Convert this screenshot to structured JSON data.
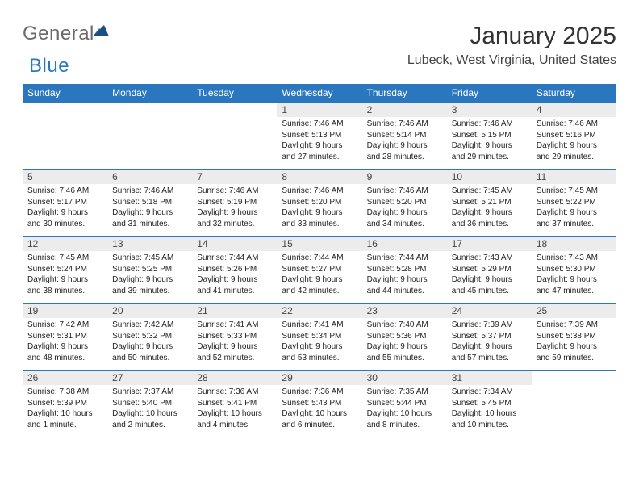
{
  "brand": {
    "part1": "General",
    "part2": "Blue"
  },
  "title": "January 2025",
  "location": "Lubeck, West Virginia, United States",
  "colors": {
    "header_bg": "#2b77bf",
    "header_text": "#ffffff",
    "daynum_bg": "#ececec",
    "border": "#2b77bf",
    "logo_gray": "#6a6a6a",
    "logo_blue": "#2b77bf",
    "page_bg": "#ffffff"
  },
  "columns": [
    "Sunday",
    "Monday",
    "Tuesday",
    "Wednesday",
    "Thursday",
    "Friday",
    "Saturday"
  ],
  "weeks": [
    {
      "nums": [
        "",
        "",
        "",
        "1",
        "2",
        "3",
        "4"
      ],
      "info": [
        "",
        "",
        "",
        "Sunrise: 7:46 AM\nSunset: 5:13 PM\nDaylight: 9 hours and 27 minutes.",
        "Sunrise: 7:46 AM\nSunset: 5:14 PM\nDaylight: 9 hours and 28 minutes.",
        "Sunrise: 7:46 AM\nSunset: 5:15 PM\nDaylight: 9 hours and 29 minutes.",
        "Sunrise: 7:46 AM\nSunset: 5:16 PM\nDaylight: 9 hours and 29 minutes."
      ]
    },
    {
      "nums": [
        "5",
        "6",
        "7",
        "8",
        "9",
        "10",
        "11"
      ],
      "info": [
        "Sunrise: 7:46 AM\nSunset: 5:17 PM\nDaylight: 9 hours and 30 minutes.",
        "Sunrise: 7:46 AM\nSunset: 5:18 PM\nDaylight: 9 hours and 31 minutes.",
        "Sunrise: 7:46 AM\nSunset: 5:19 PM\nDaylight: 9 hours and 32 minutes.",
        "Sunrise: 7:46 AM\nSunset: 5:20 PM\nDaylight: 9 hours and 33 minutes.",
        "Sunrise: 7:46 AM\nSunset: 5:20 PM\nDaylight: 9 hours and 34 minutes.",
        "Sunrise: 7:45 AM\nSunset: 5:21 PM\nDaylight: 9 hours and 36 minutes.",
        "Sunrise: 7:45 AM\nSunset: 5:22 PM\nDaylight: 9 hours and 37 minutes."
      ]
    },
    {
      "nums": [
        "12",
        "13",
        "14",
        "15",
        "16",
        "17",
        "18"
      ],
      "info": [
        "Sunrise: 7:45 AM\nSunset: 5:24 PM\nDaylight: 9 hours and 38 minutes.",
        "Sunrise: 7:45 AM\nSunset: 5:25 PM\nDaylight: 9 hours and 39 minutes.",
        "Sunrise: 7:44 AM\nSunset: 5:26 PM\nDaylight: 9 hours and 41 minutes.",
        "Sunrise: 7:44 AM\nSunset: 5:27 PM\nDaylight: 9 hours and 42 minutes.",
        "Sunrise: 7:44 AM\nSunset: 5:28 PM\nDaylight: 9 hours and 44 minutes.",
        "Sunrise: 7:43 AM\nSunset: 5:29 PM\nDaylight: 9 hours and 45 minutes.",
        "Sunrise: 7:43 AM\nSunset: 5:30 PM\nDaylight: 9 hours and 47 minutes."
      ]
    },
    {
      "nums": [
        "19",
        "20",
        "21",
        "22",
        "23",
        "24",
        "25"
      ],
      "info": [
        "Sunrise: 7:42 AM\nSunset: 5:31 PM\nDaylight: 9 hours and 48 minutes.",
        "Sunrise: 7:42 AM\nSunset: 5:32 PM\nDaylight: 9 hours and 50 minutes.",
        "Sunrise: 7:41 AM\nSunset: 5:33 PM\nDaylight: 9 hours and 52 minutes.",
        "Sunrise: 7:41 AM\nSunset: 5:34 PM\nDaylight: 9 hours and 53 minutes.",
        "Sunrise: 7:40 AM\nSunset: 5:36 PM\nDaylight: 9 hours and 55 minutes.",
        "Sunrise: 7:39 AM\nSunset: 5:37 PM\nDaylight: 9 hours and 57 minutes.",
        "Sunrise: 7:39 AM\nSunset: 5:38 PM\nDaylight: 9 hours and 59 minutes."
      ]
    },
    {
      "nums": [
        "26",
        "27",
        "28",
        "29",
        "30",
        "31",
        ""
      ],
      "info": [
        "Sunrise: 7:38 AM\nSunset: 5:39 PM\nDaylight: 10 hours and 1 minute.",
        "Sunrise: 7:37 AM\nSunset: 5:40 PM\nDaylight: 10 hours and 2 minutes.",
        "Sunrise: 7:36 AM\nSunset: 5:41 PM\nDaylight: 10 hours and 4 minutes.",
        "Sunrise: 7:36 AM\nSunset: 5:43 PM\nDaylight: 10 hours and 6 minutes.",
        "Sunrise: 7:35 AM\nSunset: 5:44 PM\nDaylight: 10 hours and 8 minutes.",
        "Sunrise: 7:34 AM\nSunset: 5:45 PM\nDaylight: 10 hours and 10 minutes.",
        ""
      ]
    }
  ]
}
